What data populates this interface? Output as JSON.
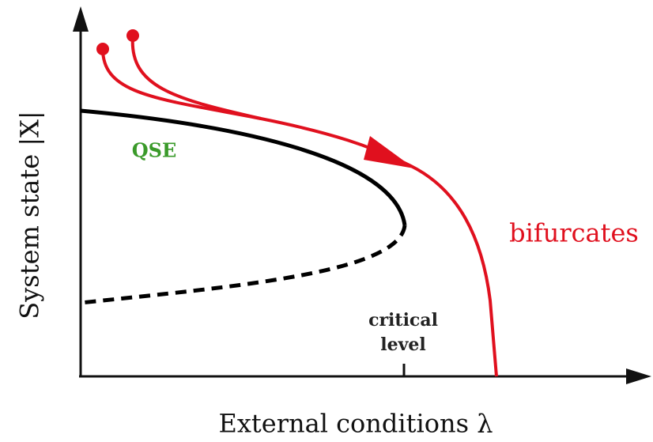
{
  "y_axis_label": "System state |X|",
  "x_axis_label": "External conditions λ",
  "labels": {
    "qse": "QSE",
    "critical": [
      "critical",
      "level"
    ],
    "bifurcates": "bifurcates"
  }
}
